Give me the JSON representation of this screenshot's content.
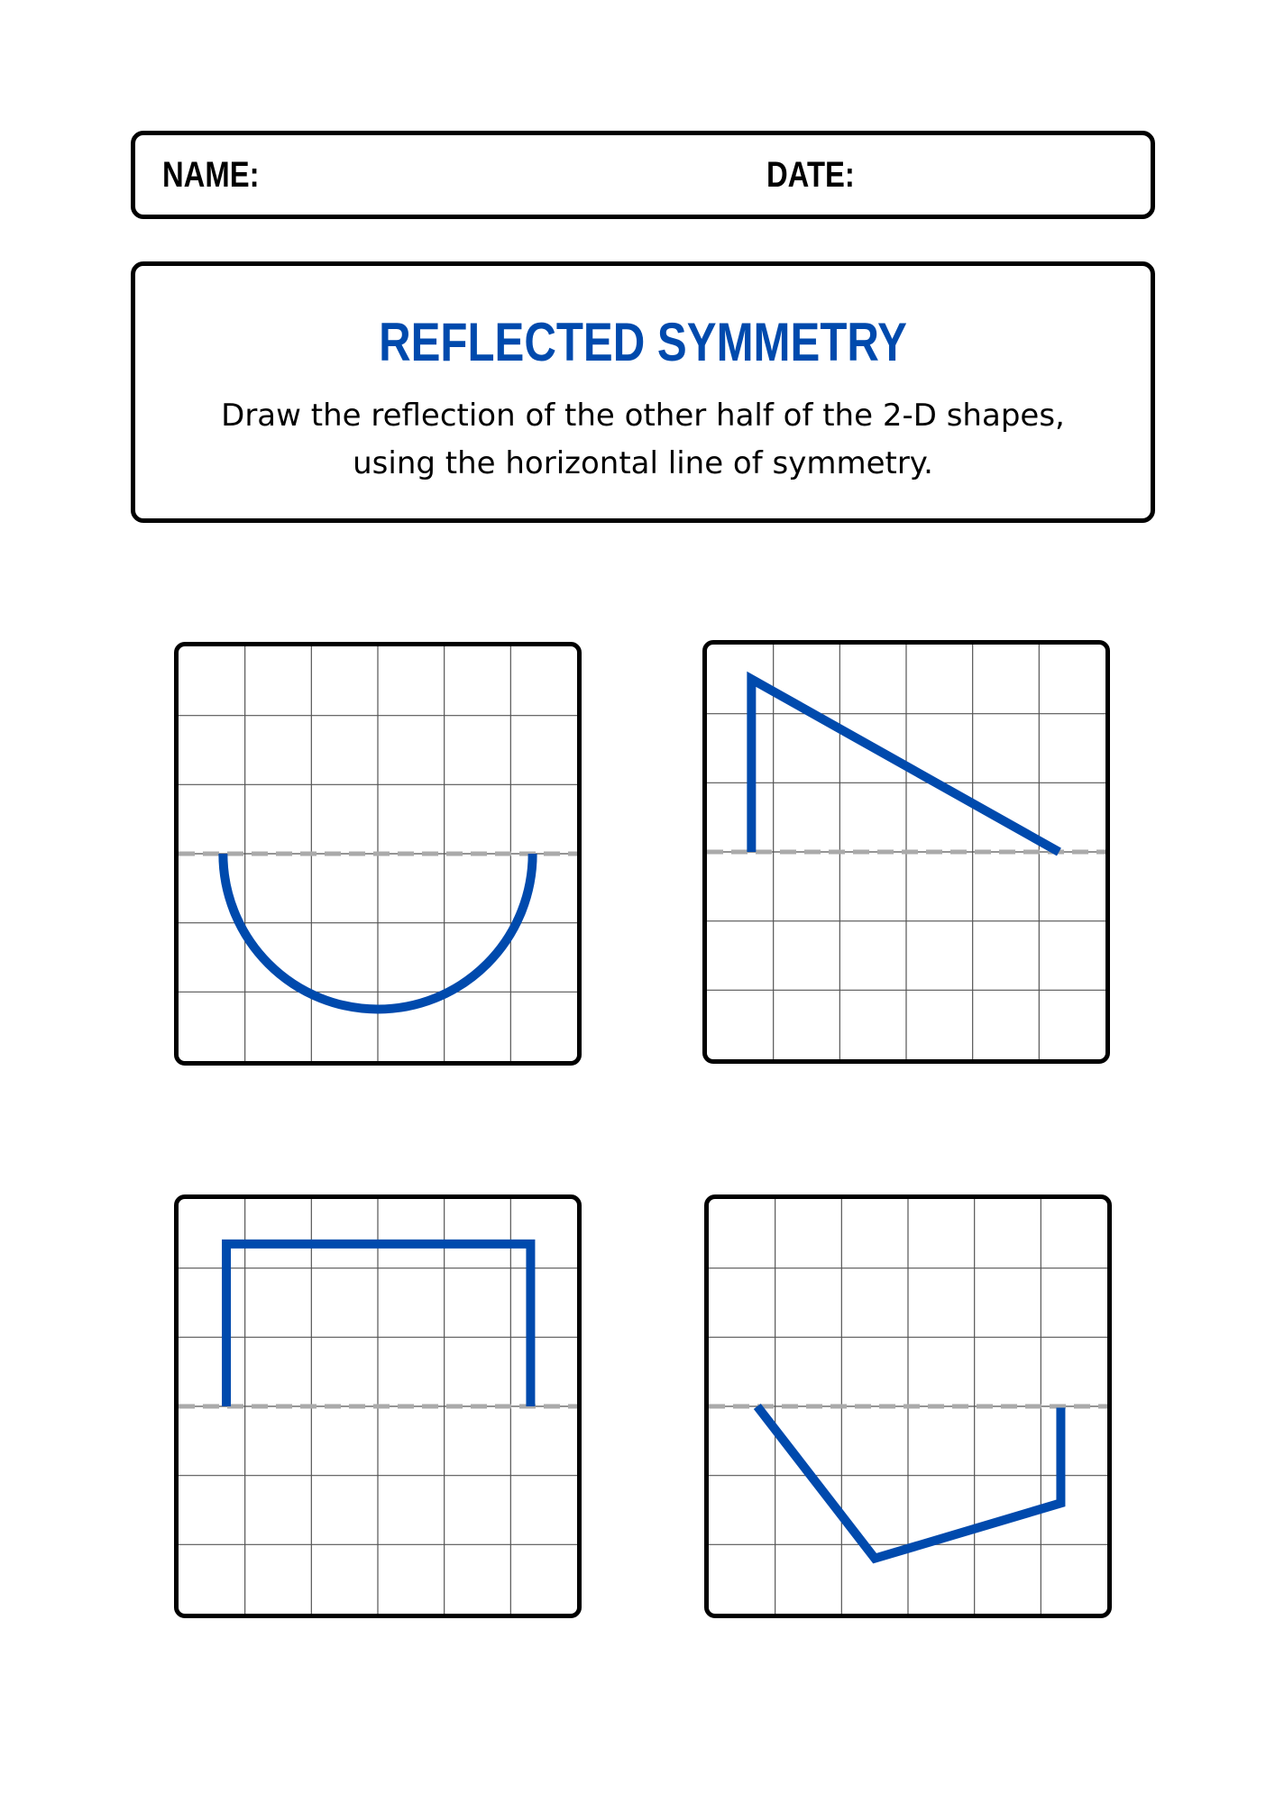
{
  "header": {
    "name_label": "NAME:",
    "date_label": "DATE:"
  },
  "title": "REFLECTED SYMMETRY",
  "instructions": "Draw the reflection of the other half of the 2-D shapes, using the horizontal line of symmetry.",
  "colors": {
    "accent": "#004aad",
    "symmetry_line": "#aaaaaa",
    "grid_line": "#555555",
    "border": "#000000"
  },
  "grids": [
    {
      "shape": "semicircle"
    },
    {
      "shape": "right-triangle-half"
    },
    {
      "shape": "rectangle-half"
    },
    {
      "shape": "polygon-half"
    }
  ]
}
